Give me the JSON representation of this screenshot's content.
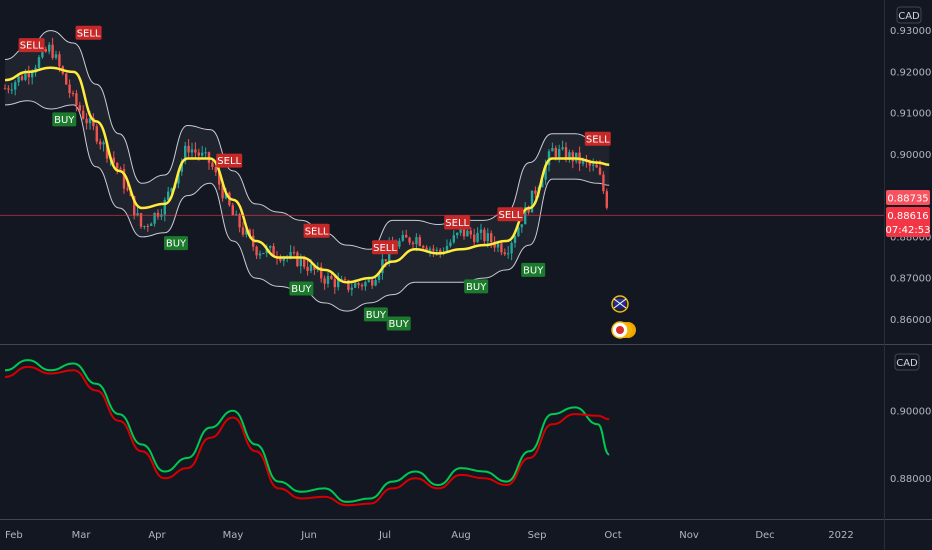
{
  "currency": "CAD",
  "colors": {
    "background": "#131722",
    "up": "#26a69a",
    "down": "#ef5350",
    "ma": "#ffeb3b",
    "band": "#c9ccd4",
    "buy_badge": "#1b7a2b",
    "sell_badge": "#c62828",
    "osc_green": "#00c853",
    "osc_red": "#d50000",
    "price_line": "#f23645"
  },
  "price_axis": {
    "labels": [
      "0.93000",
      "0.92000",
      "0.91000",
      "0.90000",
      "0.88000",
      "0.87000",
      "0.86000"
    ],
    "min": 0.855,
    "max": 0.935
  },
  "osc_axis": {
    "labels": [
      "0.90000",
      "0.88000"
    ],
    "min": 0.87,
    "max": 0.918
  },
  "time_axis": [
    "Feb",
    "Mar",
    "Apr",
    "May",
    "Jun",
    "Jul",
    "Aug",
    "Sep",
    "Oct",
    "Nov",
    "Dec",
    "2022"
  ],
  "price_badge": {
    "prev_close": "0.88735",
    "last": "0.88616",
    "countdown": "07:42:53"
  },
  "chart_data": {
    "type": "line",
    "panels": [
      {
        "kind": "candlestick-with-bands",
        "x_months": [
          0,
          0.3,
          0.6,
          0.9,
          1.2,
          1.5,
          1.8,
          2.1,
          2.4,
          2.7,
          3.0,
          3.3,
          3.6,
          3.9,
          4.2,
          4.5,
          4.8,
          5.1,
          5.4,
          5.7,
          6.0,
          6.3,
          6.6,
          6.9,
          7.2,
          7.5,
          7.8,
          7.95
        ],
        "ma_values": [
          0.918,
          0.92,
          0.921,
          0.92,
          0.908,
          0.896,
          0.887,
          0.888,
          0.899,
          0.899,
          0.889,
          0.879,
          0.875,
          0.875,
          0.872,
          0.869,
          0.87,
          0.874,
          0.877,
          0.876,
          0.877,
          0.878,
          0.879,
          0.887,
          0.899,
          0.899,
          0.898,
          0.8975
        ],
        "upper_band": [
          0.923,
          0.926,
          0.93,
          0.927,
          0.917,
          0.905,
          0.893,
          0.895,
          0.907,
          0.906,
          0.896,
          0.888,
          0.886,
          0.884,
          0.881,
          0.878,
          0.877,
          0.884,
          0.884,
          0.883,
          0.884,
          0.884,
          0.886,
          0.898,
          0.905,
          0.905,
          0.903,
          0.9025
        ],
        "lower_band": [
          0.912,
          0.913,
          0.911,
          0.912,
          0.897,
          0.887,
          0.88,
          0.881,
          0.89,
          0.893,
          0.879,
          0.87,
          0.868,
          0.867,
          0.864,
          0.862,
          0.864,
          0.866,
          0.869,
          0.869,
          0.869,
          0.87,
          0.872,
          0.878,
          0.894,
          0.894,
          0.893,
          0.8925
        ],
        "close": [
          0.916,
          0.92,
          0.926,
          0.913,
          0.905,
          0.896,
          0.882,
          0.888,
          0.902,
          0.898,
          0.885,
          0.877,
          0.876,
          0.874,
          0.87,
          0.868,
          0.869,
          0.878,
          0.88,
          0.876,
          0.881,
          0.88,
          0.877,
          0.888,
          0.901,
          0.899,
          0.896,
          0.8862
        ]
      },
      {
        "kind": "oscillator",
        "x_months": [
          0,
          0.3,
          0.6,
          0.9,
          1.2,
          1.5,
          1.8,
          2.1,
          2.4,
          2.7,
          3.0,
          3.3,
          3.6,
          3.9,
          4.2,
          4.5,
          4.8,
          5.1,
          5.4,
          5.7,
          6.0,
          6.3,
          6.6,
          6.9,
          7.2,
          7.5,
          7.8,
          7.95
        ],
        "series": [
          {
            "values": [
              0.912,
              0.915,
              0.912,
              0.914,
              0.908,
              0.899,
              0.89,
              0.882,
              0.886,
              0.895,
              0.9,
              0.89,
              0.879,
              0.876,
              0.877,
              0.873,
              0.874,
              0.879,
              0.882,
              0.878,
              0.883,
              0.882,
              0.879,
              0.888,
              0.899,
              0.901,
              0.896,
              0.887
            ]
          },
          {
            "values": [
              0.91,
              0.913,
              0.911,
              0.912,
              0.906,
              0.897,
              0.888,
              0.88,
              0.883,
              0.892,
              0.898,
              0.888,
              0.877,
              0.874,
              0.8745,
              0.872,
              0.8725,
              0.877,
              0.88,
              0.877,
              0.881,
              0.88,
              0.878,
              0.886,
              0.896,
              0.899,
              0.8985,
              0.8975
            ]
          }
        ]
      }
    ],
    "signals": [
      {
        "label": "SELL",
        "type": "sell",
        "month": 0.35,
        "price": 0.9265
      },
      {
        "label": "SELL",
        "type": "sell",
        "month": 1.1,
        "price": 0.9295
      },
      {
        "label": "BUY",
        "type": "buy",
        "month": 0.78,
        "price": 0.9085
      },
      {
        "label": "SELL",
        "type": "sell",
        "month": 2.95,
        "price": 0.8985
      },
      {
        "label": "BUY",
        "type": "buy",
        "month": 2.25,
        "price": 0.8785
      },
      {
        "label": "SELL",
        "type": "sell",
        "month": 4.1,
        "price": 0.8815
      },
      {
        "label": "BUY",
        "type": "buy",
        "month": 3.9,
        "price": 0.8675
      },
      {
        "label": "SELL",
        "type": "sell",
        "month": 5.0,
        "price": 0.8775
      },
      {
        "label": "BUY",
        "type": "buy",
        "month": 4.88,
        "price": 0.8612
      },
      {
        "label": "BUY",
        "type": "buy",
        "month": 5.18,
        "price": 0.859
      },
      {
        "label": "SELL",
        "type": "sell",
        "month": 5.95,
        "price": 0.8835
      },
      {
        "label": "BUY",
        "type": "buy",
        "month": 6.2,
        "price": 0.868
      },
      {
        "label": "SELL",
        "type": "sell",
        "month": 6.65,
        "price": 0.8855
      },
      {
        "label": "BUY",
        "type": "buy",
        "month": 6.95,
        "price": 0.872
      },
      {
        "label": "SELL",
        "type": "sell",
        "month": 7.8,
        "price": 0.9038
      }
    ]
  }
}
